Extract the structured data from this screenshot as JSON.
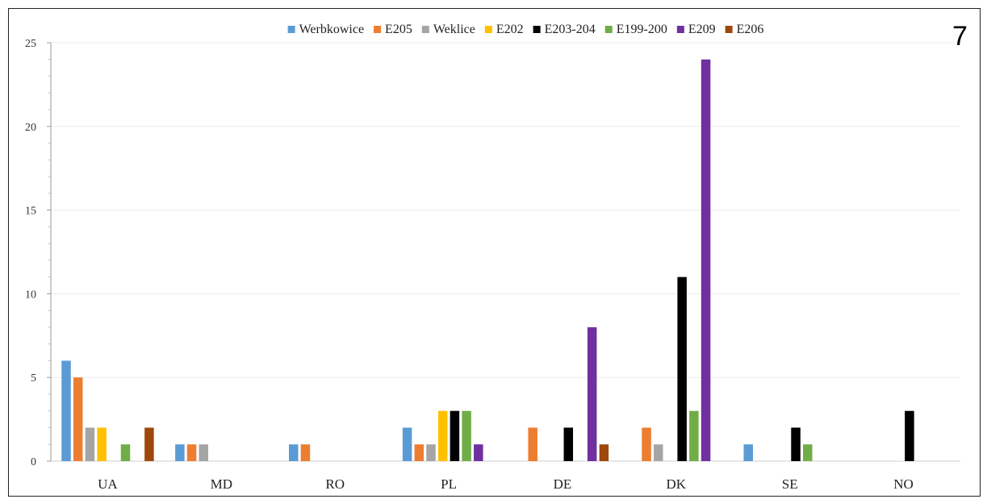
{
  "panel_label": "7",
  "chart_data": {
    "type": "bar",
    "categories": [
      "UA",
      "MD",
      "RO",
      "PL",
      "DE",
      "DK",
      "SE",
      "NO"
    ],
    "series": [
      {
        "name": "Werbkowice",
        "color": "#5b9bd5",
        "values": [
          6,
          1,
          1,
          2,
          0,
          0,
          1,
          0
        ]
      },
      {
        "name": "E205",
        "color": "#ed7d31",
        "values": [
          5,
          1,
          1,
          1,
          2,
          2,
          0,
          0
        ]
      },
      {
        "name": "Weklice",
        "color": "#a5a5a5",
        "values": [
          2,
          1,
          0,
          1,
          0,
          1,
          0,
          0
        ]
      },
      {
        "name": "E202",
        "color": "#ffc000",
        "values": [
          2,
          0,
          0,
          3,
          0,
          0,
          0,
          0
        ]
      },
      {
        "name": "E203-204",
        "color": "#000000",
        "values": [
          0,
          0,
          0,
          3,
          2,
          11,
          2,
          3
        ]
      },
      {
        "name": "E199-200",
        "color": "#70ad47",
        "values": [
          1,
          0,
          0,
          3,
          0,
          3,
          1,
          0
        ]
      },
      {
        "name": "E209",
        "color": "#7030a0",
        "values": [
          0,
          0,
          0,
          1,
          8,
          24,
          0,
          0
        ]
      },
      {
        "name": "E206",
        "color": "#9e480e",
        "values": [
          2,
          0,
          0,
          0,
          1,
          0,
          0,
          0
        ]
      }
    ],
    "ylim": [
      0,
      25
    ],
    "yticks": [
      0,
      5,
      10,
      15,
      20,
      25
    ],
    "grid": true,
    "legend": "top"
  }
}
